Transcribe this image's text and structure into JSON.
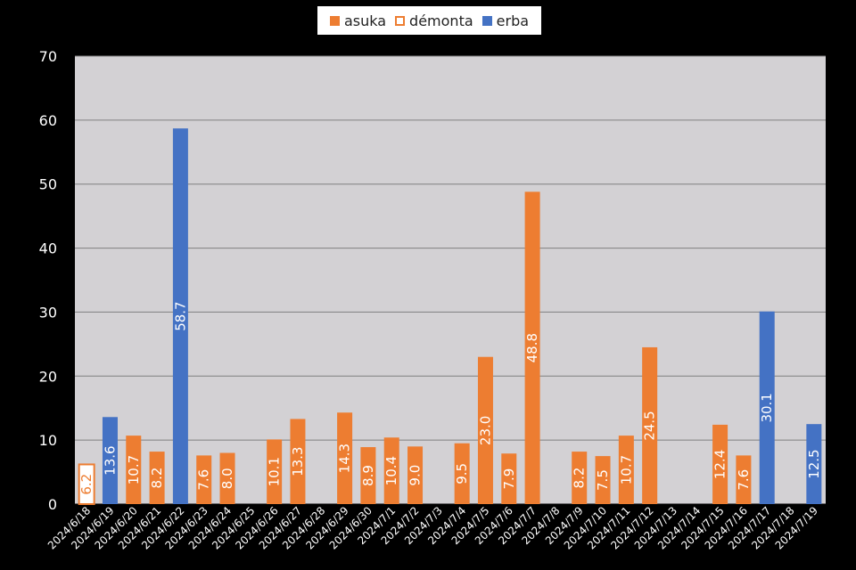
{
  "colors": {
    "asuka": "#ED7D31",
    "demonta": "#ED7D31",
    "erba": "#4472C4",
    "plot_bg": "#D3D1D4",
    "grid": "#808080",
    "background": "#000000"
  },
  "chart_data": {
    "type": "bar",
    "title": "",
    "xlabel": "",
    "ylabel": "",
    "ylim": [
      0,
      70
    ],
    "yticks": [
      0,
      10,
      20,
      30,
      40,
      50,
      60,
      70
    ],
    "grid": true,
    "legend_position": "top",
    "legend": [
      {
        "name": "asuka",
        "style": "filled",
        "color": "#ED7D31"
      },
      {
        "name": "démonta",
        "style": "outline",
        "color": "#ED7D31"
      },
      {
        "name": "erba",
        "style": "filled",
        "color": "#4472C4"
      }
    ],
    "categories": [
      "2024/6/18",
      "2024/6/19",
      "2024/6/20",
      "2024/6/21",
      "2024/6/22",
      "2024/6/23",
      "2024/6/24",
      "2024/6/25",
      "2024/6/26",
      "2024/6/27",
      "2024/6/28",
      "2024/6/29",
      "2024/6/30",
      "2024/7/1",
      "2024/7/2",
      "2024/7/3",
      "2024/7/4",
      "2024/7/5",
      "2024/7/6",
      "2024/7/7",
      "2024/7/8",
      "2024/7/9",
      "2024/7/10",
      "2024/7/11",
      "2024/7/12",
      "2024/7/13",
      "2024/7/14",
      "2024/7/15",
      "2024/7/16",
      "2024/7/17",
      "2024/7/18",
      "2024/7/19"
    ],
    "bars": [
      {
        "value": 6.2,
        "series": "démonta"
      },
      {
        "value": 13.6,
        "series": "erba"
      },
      {
        "value": 10.7,
        "series": "asuka"
      },
      {
        "value": 8.2,
        "series": "asuka"
      },
      {
        "value": 58.7,
        "series": "erba"
      },
      {
        "value": 7.6,
        "series": "asuka"
      },
      {
        "value": 8.0,
        "series": "asuka"
      },
      null,
      {
        "value": 10.1,
        "series": "asuka"
      },
      {
        "value": 13.3,
        "series": "asuka"
      },
      null,
      {
        "value": 14.3,
        "series": "asuka"
      },
      {
        "value": 8.9,
        "series": "asuka"
      },
      {
        "value": 10.4,
        "series": "asuka"
      },
      {
        "value": 9.0,
        "series": "asuka"
      },
      null,
      {
        "value": 9.5,
        "series": "asuka"
      },
      {
        "value": 23.0,
        "series": "asuka"
      },
      {
        "value": 7.9,
        "series": "asuka"
      },
      {
        "value": 48.8,
        "series": "asuka"
      },
      null,
      {
        "value": 8.2,
        "series": "asuka"
      },
      {
        "value": 7.5,
        "series": "asuka"
      },
      {
        "value": 10.7,
        "series": "asuka"
      },
      {
        "value": 24.5,
        "series": "asuka"
      },
      null,
      null,
      {
        "value": 12.4,
        "series": "asuka"
      },
      {
        "value": 7.6,
        "series": "asuka"
      },
      {
        "value": 30.1,
        "series": "erba"
      },
      null,
      {
        "value": 12.5,
        "series": "erba"
      }
    ]
  }
}
